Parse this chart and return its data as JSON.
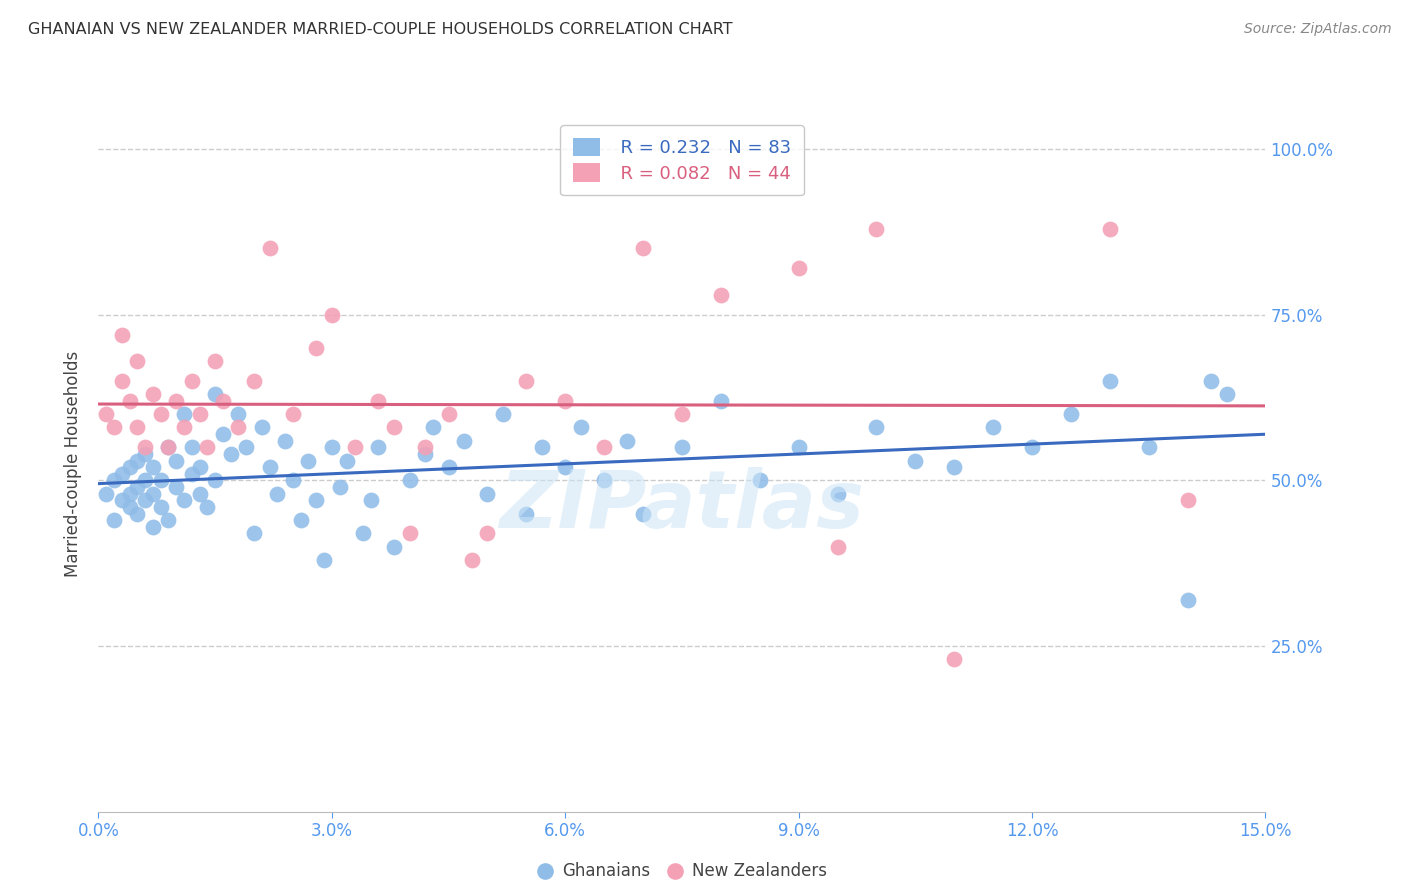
{
  "title": "GHANAIAN VS NEW ZEALANDER MARRIED-COUPLE HOUSEHOLDS CORRELATION CHART",
  "source": "Source: ZipAtlas.com",
  "ylabel": "Married-couple Households",
  "xmin": 0.0,
  "xmax": 0.15,
  "ymin": 0.0,
  "ymax": 1.05,
  "blue_R": 0.232,
  "blue_N": 83,
  "pink_R": 0.082,
  "pink_N": 44,
  "legend_label_blue": "Ghanaians",
  "legend_label_pink": "New Zealanders",
  "blue_color": "#90bce8",
  "pink_color": "#f4a0b5",
  "blue_line_color": "#3a6abf",
  "pink_line_color": "#d95f7f",
  "title_color": "#333333",
  "tick_color": "#5599ee",
  "grid_color": "#cccccc",
  "watermark": "ZIPatlas",
  "ytick_values": [
    0.25,
    0.5,
    0.75,
    1.0
  ],
  "ytick_labels": [
    "25.0%",
    "50.0%",
    "75.0%",
    "100.0%"
  ],
  "blue_points_x": [
    0.001,
    0.002,
    0.002,
    0.003,
    0.003,
    0.004,
    0.004,
    0.004,
    0.005,
    0.005,
    0.005,
    0.006,
    0.006,
    0.006,
    0.007,
    0.007,
    0.007,
    0.008,
    0.008,
    0.009,
    0.009,
    0.01,
    0.01,
    0.011,
    0.011,
    0.012,
    0.012,
    0.013,
    0.013,
    0.014,
    0.015,
    0.015,
    0.016,
    0.017,
    0.018,
    0.019,
    0.02,
    0.021,
    0.022,
    0.023,
    0.024,
    0.025,
    0.026,
    0.027,
    0.028,
    0.029,
    0.03,
    0.031,
    0.032,
    0.034,
    0.035,
    0.036,
    0.038,
    0.04,
    0.042,
    0.043,
    0.045,
    0.047,
    0.05,
    0.052,
    0.055,
    0.057,
    0.06,
    0.062,
    0.065,
    0.068,
    0.07,
    0.075,
    0.08,
    0.085,
    0.09,
    0.095,
    0.1,
    0.105,
    0.11,
    0.115,
    0.12,
    0.125,
    0.13,
    0.135,
    0.14,
    0.143,
    0.145
  ],
  "blue_points_y": [
    0.48,
    0.5,
    0.44,
    0.47,
    0.51,
    0.46,
    0.48,
    0.52,
    0.45,
    0.49,
    0.53,
    0.47,
    0.5,
    0.54,
    0.43,
    0.48,
    0.52,
    0.46,
    0.5,
    0.44,
    0.55,
    0.49,
    0.53,
    0.47,
    0.6,
    0.51,
    0.55,
    0.48,
    0.52,
    0.46,
    0.63,
    0.5,
    0.57,
    0.54,
    0.6,
    0.55,
    0.42,
    0.58,
    0.52,
    0.48,
    0.56,
    0.5,
    0.44,
    0.53,
    0.47,
    0.38,
    0.55,
    0.49,
    0.53,
    0.42,
    0.47,
    0.55,
    0.4,
    0.5,
    0.54,
    0.58,
    0.52,
    0.56,
    0.48,
    0.6,
    0.45,
    0.55,
    0.52,
    0.58,
    0.5,
    0.56,
    0.45,
    0.55,
    0.62,
    0.5,
    0.55,
    0.48,
    0.58,
    0.53,
    0.52,
    0.58,
    0.55,
    0.6,
    0.65,
    0.55,
    0.32,
    0.65,
    0.63
  ],
  "pink_points_x": [
    0.001,
    0.002,
    0.003,
    0.003,
    0.004,
    0.005,
    0.005,
    0.006,
    0.007,
    0.008,
    0.009,
    0.01,
    0.011,
    0.012,
    0.013,
    0.014,
    0.015,
    0.016,
    0.018,
    0.02,
    0.022,
    0.025,
    0.028,
    0.03,
    0.033,
    0.036,
    0.038,
    0.04,
    0.042,
    0.045,
    0.048,
    0.05,
    0.055,
    0.06,
    0.065,
    0.07,
    0.075,
    0.08,
    0.09,
    0.095,
    0.1,
    0.11,
    0.13,
    0.14
  ],
  "pink_points_y": [
    0.6,
    0.58,
    0.65,
    0.72,
    0.62,
    0.68,
    0.58,
    0.55,
    0.63,
    0.6,
    0.55,
    0.62,
    0.58,
    0.65,
    0.6,
    0.55,
    0.68,
    0.62,
    0.58,
    0.65,
    0.85,
    0.6,
    0.7,
    0.75,
    0.55,
    0.62,
    0.58,
    0.42,
    0.55,
    0.6,
    0.38,
    0.42,
    0.65,
    0.62,
    0.55,
    0.85,
    0.6,
    0.78,
    0.82,
    0.4,
    0.88,
    0.23,
    0.88,
    0.47
  ]
}
